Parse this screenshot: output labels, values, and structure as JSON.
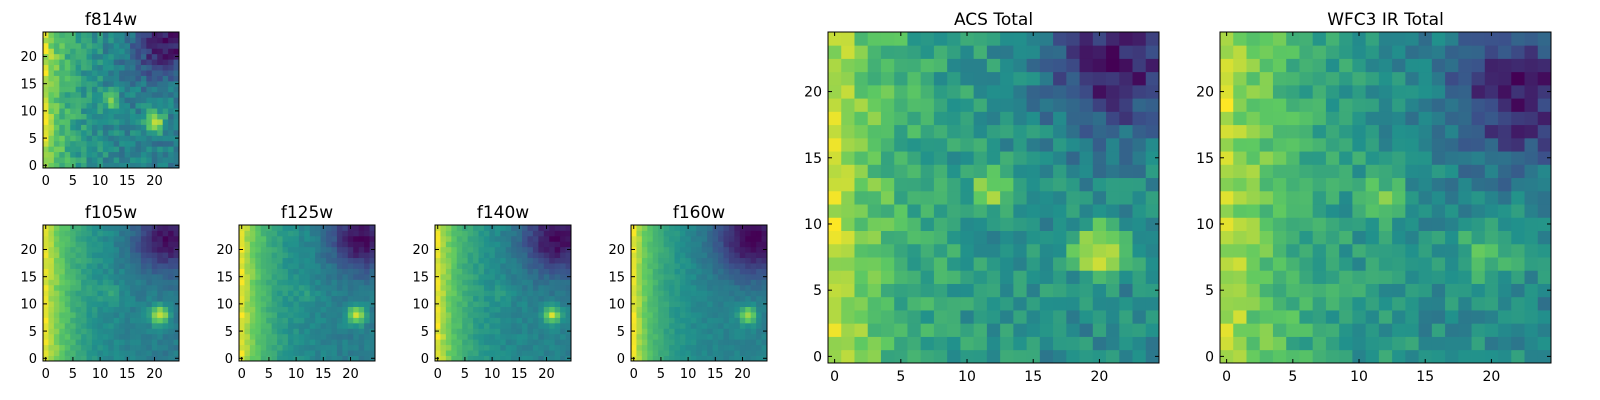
{
  "chart_data": [
    {
      "type": "heatmap",
      "title": "f814w",
      "xlabel": "",
      "ylabel": "",
      "x_range": [
        0,
        24
      ],
      "y_range": [
        0,
        24
      ],
      "grid_size": 25,
      "x_ticks": [
        0,
        5,
        10,
        15,
        20
      ],
      "x_tick_labels": [
        "0",
        "5",
        "10",
        "15",
        "20"
      ],
      "y_ticks": [
        0,
        5,
        10,
        15,
        20
      ],
      "y_tick_labels": [
        "0",
        "5",
        "10",
        "15",
        "20"
      ],
      "colormap": "viridis",
      "colormap_stops": [
        "#440154",
        "#3b528b",
        "#21918c",
        "#5ec962",
        "#fde725"
      ],
      "model": {
        "seed": 11,
        "left_gradient": 0.55,
        "gradient_scale": 5,
        "sources": [
          {
            "x": 20,
            "y": 8,
            "peak": 0.55,
            "sigma": 1.3
          },
          {
            "x": 12,
            "y": 12,
            "peak": 0.35,
            "sigma": 1.1
          }
        ],
        "dark_corner": {
          "x": 22,
          "y": 22,
          "depth": 0.45,
          "sigma": 4
        },
        "noise": 0.12,
        "base": 0.42
      }
    },
    {
      "type": "heatmap",
      "title": "f105w",
      "xlabel": "",
      "ylabel": "",
      "x_range": [
        0,
        24
      ],
      "y_range": [
        0,
        24
      ],
      "grid_size": 25,
      "x_ticks": [
        0,
        5,
        10,
        15,
        20
      ],
      "x_tick_labels": [
        "0",
        "5",
        "10",
        "15",
        "20"
      ],
      "y_ticks": [
        0,
        5,
        10,
        15,
        20
      ],
      "y_tick_labels": [
        "0",
        "5",
        "10",
        "15",
        "20"
      ],
      "colormap": "viridis",
      "colormap_stops": [
        "#440154",
        "#3b528b",
        "#21918c",
        "#5ec962",
        "#fde725"
      ],
      "model": {
        "seed": 21,
        "left_gradient": 0.6,
        "gradient_scale": 6,
        "sources": [
          {
            "x": 21,
            "y": 8,
            "peak": 0.55,
            "sigma": 1.2
          },
          {
            "x": 12,
            "y": 12,
            "peak": 0.12,
            "sigma": 1.2
          }
        ],
        "dark_corner": {
          "x": 22,
          "y": 22,
          "depth": 0.4,
          "sigma": 4
        },
        "noise": 0.05,
        "base": 0.35
      }
    },
    {
      "type": "heatmap",
      "title": "f125w",
      "xlabel": "",
      "ylabel": "",
      "x_range": [
        0,
        24
      ],
      "y_range": [
        0,
        24
      ],
      "grid_size": 25,
      "x_ticks": [
        0,
        5,
        10,
        15,
        20
      ],
      "x_tick_labels": [
        "0",
        "5",
        "10",
        "15",
        "20"
      ],
      "y_ticks": [
        0,
        5,
        10,
        15,
        20
      ],
      "y_tick_labels": [
        "0",
        "5",
        "10",
        "15",
        "20"
      ],
      "colormap": "viridis",
      "colormap_stops": [
        "#440154",
        "#3b528b",
        "#21918c",
        "#5ec962",
        "#fde725"
      ],
      "model": {
        "seed": 31,
        "left_gradient": 0.6,
        "gradient_scale": 5.5,
        "sources": [
          {
            "x": 21,
            "y": 8,
            "peak": 0.55,
            "sigma": 1.2
          },
          {
            "x": 12,
            "y": 12,
            "peak": 0.1,
            "sigma": 1.2
          }
        ],
        "dark_corner": {
          "x": 22,
          "y": 22,
          "depth": 0.42,
          "sigma": 4
        },
        "noise": 0.05,
        "base": 0.33
      }
    },
    {
      "type": "heatmap",
      "title": "f140w",
      "xlabel": "",
      "ylabel": "",
      "x_range": [
        0,
        24
      ],
      "y_range": [
        0,
        24
      ],
      "grid_size": 25,
      "x_ticks": [
        0,
        5,
        10,
        15,
        20
      ],
      "x_tick_labels": [
        "0",
        "5",
        "10",
        "15",
        "20"
      ],
      "y_ticks": [
        0,
        5,
        10,
        15,
        20
      ],
      "y_tick_labels": [
        "0",
        "5",
        "10",
        "15",
        "20"
      ],
      "colormap": "viridis",
      "colormap_stops": [
        "#440154",
        "#3b528b",
        "#21918c",
        "#5ec962",
        "#fde725"
      ],
      "model": {
        "seed": 41,
        "left_gradient": 0.62,
        "gradient_scale": 5,
        "sources": [
          {
            "x": 21,
            "y": 8,
            "peak": 0.55,
            "sigma": 1.1
          },
          {
            "x": 12,
            "y": 12,
            "peak": 0.08,
            "sigma": 1.2
          }
        ],
        "dark_corner": {
          "x": 22,
          "y": 22,
          "depth": 0.48,
          "sigma": 4.5
        },
        "noise": 0.05,
        "base": 0.32
      }
    },
    {
      "type": "heatmap",
      "title": "f160w",
      "xlabel": "",
      "ylabel": "",
      "x_range": [
        0,
        24
      ],
      "y_range": [
        0,
        24
      ],
      "grid_size": 25,
      "x_ticks": [
        0,
        5,
        10,
        15,
        20
      ],
      "x_tick_labels": [
        "0",
        "5",
        "10",
        "15",
        "20"
      ],
      "y_ticks": [
        0,
        5,
        10,
        15,
        20
      ],
      "y_tick_labels": [
        "0",
        "5",
        "10",
        "15",
        "20"
      ],
      "colormap": "viridis",
      "colormap_stops": [
        "#440154",
        "#3b528b",
        "#21918c",
        "#5ec962",
        "#fde725"
      ],
      "model": {
        "seed": 51,
        "left_gradient": 0.62,
        "gradient_scale": 4.5,
        "sources": [
          {
            "x": 21,
            "y": 8,
            "peak": 0.5,
            "sigma": 1.1
          }
        ],
        "dark_corner": {
          "x": 22,
          "y": 22,
          "depth": 0.5,
          "sigma": 5
        },
        "noise": 0.04,
        "base": 0.3
      }
    },
    {
      "type": "heatmap",
      "title": "ACS Total",
      "xlabel": "",
      "ylabel": "",
      "x_range": [
        0,
        24
      ],
      "y_range": [
        0,
        24
      ],
      "grid_size": 25,
      "x_ticks": [
        0,
        5,
        10,
        15,
        20
      ],
      "x_tick_labels": [
        "0",
        "5",
        "10",
        "15",
        "20"
      ],
      "y_ticks": [
        0,
        5,
        10,
        15,
        20
      ],
      "y_tick_labels": [
        "0",
        "5",
        "10",
        "15",
        "20"
      ],
      "colormap": "viridis",
      "colormap_stops": [
        "#440154",
        "#3b528b",
        "#21918c",
        "#5ec962",
        "#fde725"
      ],
      "model": {
        "seed": 61,
        "left_gradient": 0.45,
        "gradient_scale": 6,
        "sources": [
          {
            "x": 20,
            "y": 8,
            "peak": 0.5,
            "sigma": 1.4
          },
          {
            "x": 12,
            "y": 12.5,
            "peak": 0.35,
            "sigma": 1.1
          }
        ],
        "dark_corner": {
          "x": 21,
          "y": 22,
          "depth": 0.45,
          "sigma": 3.5
        },
        "noise": 0.12,
        "base": 0.45
      }
    },
    {
      "type": "heatmap",
      "title": "WFC3 IR Total",
      "xlabel": "",
      "ylabel": "",
      "x_range": [
        0,
        24
      ],
      "y_range": [
        0,
        24
      ],
      "grid_size": 25,
      "x_ticks": [
        0,
        5,
        10,
        15,
        20
      ],
      "x_tick_labels": [
        "0",
        "5",
        "10",
        "15",
        "20"
      ],
      "y_ticks": [
        0,
        5,
        10,
        15,
        20
      ],
      "y_tick_labels": [
        "0",
        "5",
        "10",
        "15",
        "20"
      ],
      "colormap": "viridis",
      "colormap_stops": [
        "#440154",
        "#3b528b",
        "#21918c",
        "#5ec962",
        "#fde725"
      ],
      "model": {
        "seed": 71,
        "left_gradient": 0.5,
        "gradient_scale": 6,
        "sources": [
          {
            "x": 20,
            "y": 8,
            "peak": 0.3,
            "sigma": 1.6
          },
          {
            "x": 12,
            "y": 12,
            "peak": 0.3,
            "sigma": 1.1
          }
        ],
        "dark_corner": {
          "x": 22,
          "y": 20,
          "depth": 0.45,
          "sigma": 4
        },
        "noise": 0.12,
        "base": 0.42
      }
    }
  ]
}
